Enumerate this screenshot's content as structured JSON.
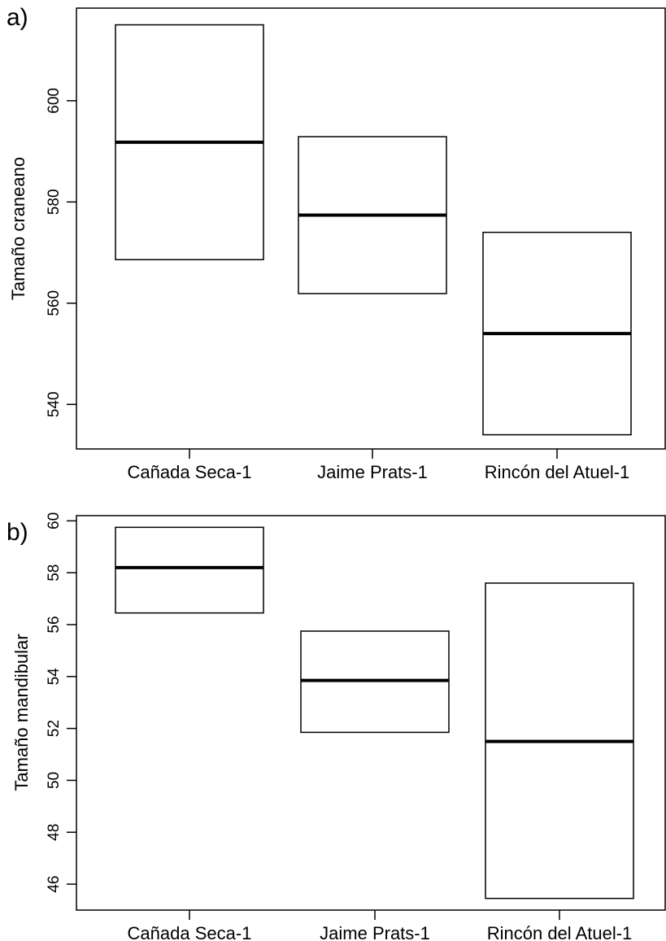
{
  "chart_data": [
    {
      "type": "box",
      "panel_label": "a)",
      "ylabel": "Tamaño craneano",
      "xlabel": "",
      "categories": [
        "Cañada Seca-1",
        "Jaime Prats-1",
        "Rincón del Atuel-1"
      ],
      "boxes": [
        {
          "category": "Cañada Seca-1",
          "low": 568.6,
          "median": 591.8,
          "high": 615.0
        },
        {
          "category": "Jaime Prats-1",
          "low": 561.9,
          "median": 577.4,
          "high": 592.9
        },
        {
          "category": "Rincón del Atuel-1",
          "low": 534.0,
          "median": 554.0,
          "high": 574.0
        }
      ],
      "yticks": [
        540,
        560,
        580,
        600
      ],
      "ylim": [
        531.2,
        618.3
      ],
      "grid": false,
      "legend": "none"
    },
    {
      "type": "box",
      "panel_label": "b)",
      "ylabel": "Tamaño mandibular",
      "xlabel": "",
      "categories": [
        "Cañada Seca-1",
        "Jaime Prats-1",
        "Rincón del Atuel-1"
      ],
      "boxes": [
        {
          "category": "Cañada Seca-1",
          "low": 56.45,
          "median": 58.2,
          "high": 59.75
        },
        {
          "category": "Jaime Prats-1",
          "low": 51.85,
          "median": 53.85,
          "high": 55.75
        },
        {
          "category": "Rincón del Atuel-1",
          "low": 45.45,
          "median": 51.5,
          "high": 57.6
        }
      ],
      "yticks": [
        46,
        48,
        50,
        52,
        54,
        56,
        58,
        60
      ],
      "ylim": [
        45.0,
        60.2
      ],
      "grid": false,
      "legend": "none"
    }
  ]
}
